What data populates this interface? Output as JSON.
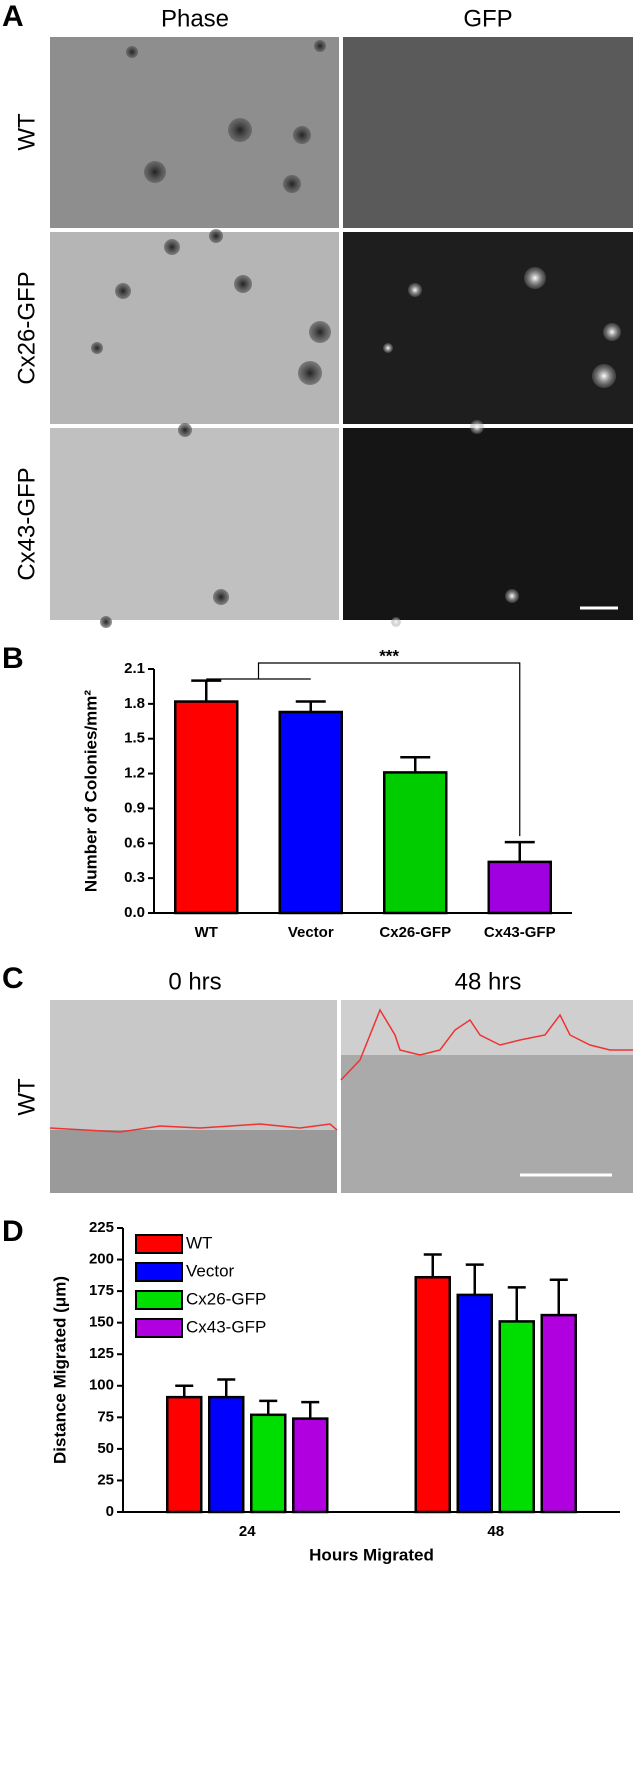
{
  "panel_labels": [
    "A",
    "B",
    "C",
    "D"
  ],
  "panel_a": {
    "columns": [
      "Phase",
      "GFP"
    ],
    "rows": [
      "WT",
      "Cx26-GFP",
      "Cx43-GFP"
    ]
  },
  "panel_c": {
    "columns": [
      "0 hrs",
      "48 hrs"
    ],
    "row": "WT"
  },
  "chart_data": [
    {
      "type": "bar",
      "ylabel": "Number of Colonies/mm²",
      "categories": [
        "WT",
        "Vector",
        "Cx26-GFP",
        "Cx43-GFP"
      ],
      "values": [
        1.82,
        1.73,
        1.21,
        0.44
      ],
      "errors": [
        0.18,
        0.09,
        0.13,
        0.17
      ],
      "colors": [
        "#ff0000",
        "#0000ff",
        "#00cc00",
        "#a000e0"
      ],
      "ylim": [
        0,
        2.1
      ],
      "yticks": [
        {
          "value": 0,
          "label": "0.0"
        },
        0.3,
        0.6,
        0.9,
        1.2,
        1.5,
        1.8,
        2.1
      ],
      "annotation": "***"
    },
    {
      "type": "grouped-bar",
      "xlabel": "Hours Migrated",
      "ylabel": "Distance Migrated (μm)",
      "categories": [
        "24",
        "48"
      ],
      "series": [
        {
          "name": "WT",
          "color": "#ff0000",
          "values": [
            91,
            186
          ],
          "errors": [
            9,
            18
          ]
        },
        {
          "name": "Vector",
          "color": "#0000ff",
          "values": [
            91,
            172
          ],
          "errors": [
            14,
            24
          ]
        },
        {
          "name": "Cx26-GFP",
          "color": "#00dd00",
          "values": [
            77,
            151
          ],
          "errors": [
            11,
            27
          ]
        },
        {
          "name": "Cx43-GFP",
          "color": "#b000e0",
          "values": [
            74,
            156
          ],
          "errors": [
            13,
            28
          ]
        }
      ],
      "ylim": [
        0,
        225
      ],
      "yticks": [
        0,
        25,
        50,
        75,
        100,
        125,
        150,
        175,
        200,
        225
      ]
    }
  ]
}
